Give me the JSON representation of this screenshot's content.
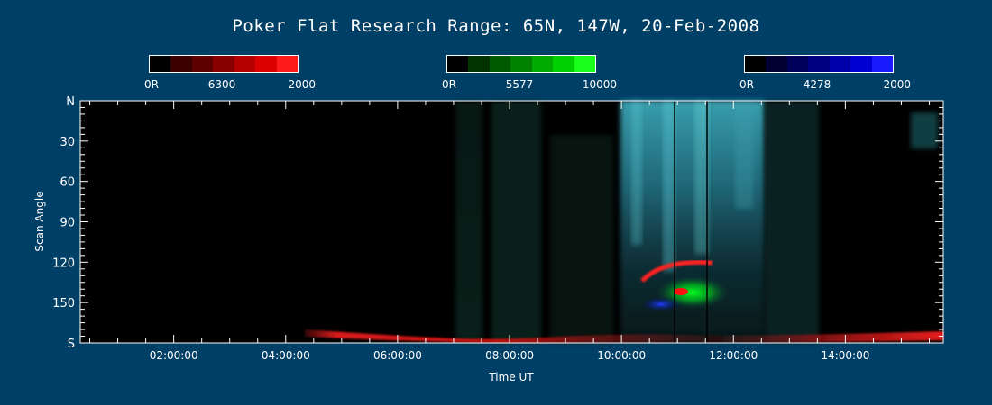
{
  "title": "Poker Flat Research Range: 65N, 147W, 20-Feb-2008",
  "colorbars": [
    {
      "min_label": "0R",
      "mid_label": "6300",
      "max_label": "2000",
      "swatches": [
        "#000000",
        "#3a0000",
        "#5e0000",
        "#8a0000",
        "#b50000",
        "#dd0000",
        "#ff1a1a"
      ]
    },
    {
      "min_label": "0R",
      "mid_label": "5577",
      "max_label": "10000",
      "swatches": [
        "#000000",
        "#003300",
        "#005a00",
        "#008200",
        "#00aa00",
        "#00d000",
        "#19ff19"
      ]
    },
    {
      "min_label": "0R",
      "mid_label": "4278",
      "max_label": "2000",
      "swatches": [
        "#000000",
        "#000033",
        "#00005a",
        "#000082",
        "#0000aa",
        "#0000d2",
        "#1a1aff"
      ]
    }
  ],
  "chart_data": {
    "type": "heatmap",
    "title": "Poker Flat Research Range: 65N, 147W, 20-Feb-2008",
    "xlabel": "Time UT",
    "ylabel": "Scan Angle",
    "x_ticks": [
      "02:00:00",
      "04:00:00",
      "06:00:00",
      "08:00:00",
      "10:00:00",
      "12:00:00",
      "14:00:00"
    ],
    "x_tick_hours": [
      2,
      4,
      6,
      8,
      10,
      12,
      14
    ],
    "xlim_hours": [
      0.33,
      15.75
    ],
    "y_ticks": [
      "N",
      "30",
      "60",
      "90",
      "120",
      "150",
      "S"
    ],
    "y_tick_values": [
      0,
      30,
      60,
      90,
      120,
      150,
      180
    ],
    "ylim": [
      0,
      180
    ],
    "channels": [
      {
        "emission": "6300",
        "color": "#ff0000",
        "range": [
          0,
          2000
        ]
      },
      {
        "emission": "5577",
        "color": "#00ff00",
        "range": [
          0,
          10000
        ]
      },
      {
        "emission": "4278",
        "color": "#0000ff",
        "range": [
          0,
          2000
        ]
      }
    ],
    "features": {
      "red_horizon_band": {
        "start_hour": 4.3,
        "end_hour": 15.75,
        "scan_angle_approx": 175
      },
      "active_aurora_window_hours": [
        9.9,
        12.5
      ],
      "data_gap_lines_hours": [
        10.9,
        11.65
      ]
    }
  }
}
